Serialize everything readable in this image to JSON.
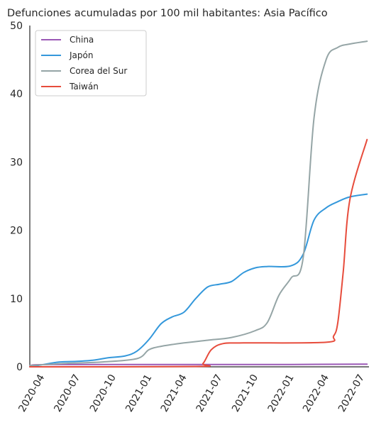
{
  "chart_data": {
    "type": "line",
    "title": "Defunciones acumuladas por 100 mil habitantes: Asia Pacífico",
    "xlabel": "",
    "ylabel": "",
    "ylim": [
      0,
      50
    ],
    "yticks": [
      0,
      10,
      20,
      30,
      40,
      50
    ],
    "xlim": [
      "2020-03-01",
      "2022-07-20"
    ],
    "xticks": [
      "2020-04",
      "2020-07",
      "2020-10",
      "2021-01",
      "2021-04",
      "2021-07",
      "2021-10",
      "2022-01",
      "2022-04",
      "2022-07"
    ],
    "grid": false,
    "legend_position": "top-left",
    "series": [
      {
        "name": "China",
        "color": "#9b59b6",
        "points": [
          [
            "2020-03-01",
            0.2
          ],
          [
            "2020-05-01",
            0.33
          ],
          [
            "2021-06-01",
            0.33
          ],
          [
            "2022-01-01",
            0.34
          ],
          [
            "2022-07-15",
            0.4
          ]
        ]
      },
      {
        "name": "Japón",
        "color": "#3498db",
        "points": [
          [
            "2020-03-01",
            0.0
          ],
          [
            "2020-04-01",
            0.3
          ],
          [
            "2020-05-15",
            0.7
          ],
          [
            "2020-07-01",
            0.8
          ],
          [
            "2020-08-15",
            1.0
          ],
          [
            "2020-09-15",
            1.3
          ],
          [
            "2020-11-01",
            1.6
          ],
          [
            "2020-12-01",
            2.3
          ],
          [
            "2021-01-01",
            4.0
          ],
          [
            "2021-02-01",
            6.3
          ],
          [
            "2021-03-01",
            7.3
          ],
          [
            "2021-04-01",
            8.0
          ],
          [
            "2021-05-01",
            10.0
          ],
          [
            "2021-06-01",
            11.7
          ],
          [
            "2021-07-01",
            12.1
          ],
          [
            "2021-08-01",
            12.5
          ],
          [
            "2021-09-01",
            13.8
          ],
          [
            "2021-10-01",
            14.5
          ],
          [
            "2021-11-01",
            14.7
          ],
          [
            "2022-01-01",
            14.8
          ],
          [
            "2022-02-01",
            16.5
          ],
          [
            "2022-03-01",
            21.5
          ],
          [
            "2022-04-01",
            23.3
          ],
          [
            "2022-05-01",
            24.2
          ],
          [
            "2022-06-01",
            24.9
          ],
          [
            "2022-07-15",
            25.3
          ]
        ]
      },
      {
        "name": "Corea del Sur",
        "color": "#95a5a6",
        "points": [
          [
            "2020-03-01",
            0.2
          ],
          [
            "2020-06-01",
            0.5
          ],
          [
            "2020-09-01",
            0.7
          ],
          [
            "2020-12-01",
            1.2
          ],
          [
            "2021-01-01",
            2.5
          ],
          [
            "2021-02-01",
            3.0
          ],
          [
            "2021-04-01",
            3.5
          ],
          [
            "2021-06-01",
            3.9
          ],
          [
            "2021-08-01",
            4.3
          ],
          [
            "2021-10-01",
            5.3
          ],
          [
            "2021-11-01",
            6.5
          ],
          [
            "2021-12-01",
            10.5
          ],
          [
            "2022-01-01",
            13.0
          ],
          [
            "2022-02-01",
            16.0
          ],
          [
            "2022-03-01",
            36.5
          ],
          [
            "2022-04-01",
            45.0
          ],
          [
            "2022-05-01",
            46.8
          ],
          [
            "2022-06-01",
            47.3
          ],
          [
            "2022-07-15",
            47.7
          ]
        ]
      },
      {
        "name": "Taiwán",
        "color": "#e74c3c",
        "points": [
          [
            "2020-03-01",
            0.0
          ],
          [
            "2021-05-01",
            0.05
          ],
          [
            "2021-05-20",
            0.5
          ],
          [
            "2021-06-10",
            2.5
          ],
          [
            "2021-07-10",
            3.4
          ],
          [
            "2021-09-01",
            3.5
          ],
          [
            "2022-04-01",
            3.6
          ],
          [
            "2022-04-20",
            4.5
          ],
          [
            "2022-05-01",
            6.5
          ],
          [
            "2022-05-15",
            14.0
          ],
          [
            "2022-06-01",
            24.5
          ],
          [
            "2022-07-15",
            33.3
          ]
        ]
      }
    ]
  }
}
